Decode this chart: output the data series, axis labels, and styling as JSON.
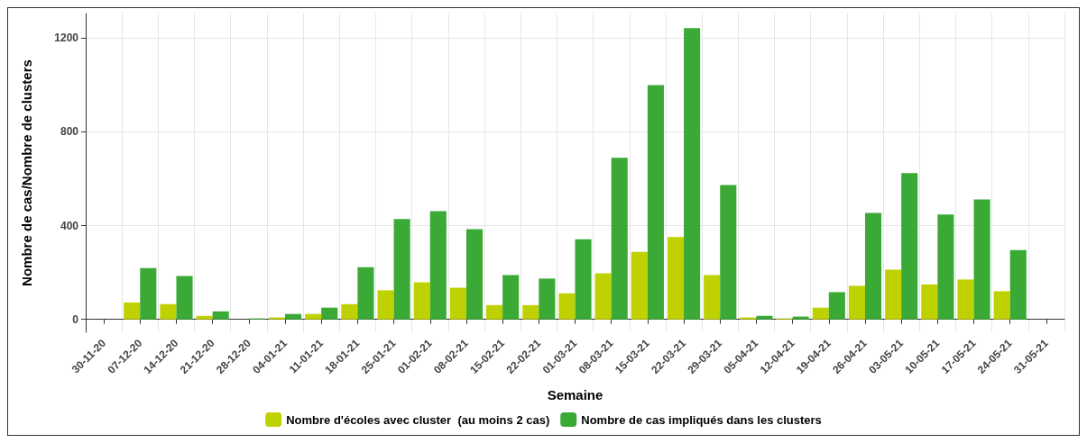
{
  "chart_data": {
    "type": "bar",
    "xlabel": "Semaine",
    "ylabel": "Nombre de cas/Nombre de clusters",
    "categories": [
      "30-11-20",
      "07-12-20",
      "14-12-20",
      "21-12-20",
      "28-12-20",
      "04-01-21",
      "11-01-21",
      "18-01-21",
      "25-01-21",
      "01-02-21",
      "08-02-21",
      "15-02-21",
      "22-02-21",
      "01-03-21",
      "08-03-21",
      "15-03-21",
      "22-03-21",
      "29-03-21",
      "05-04-21",
      "12-04-21",
      "19-04-21",
      "26-04-21",
      "03-05-21",
      "10-05-21",
      "17-05-21",
      "24-05-21",
      "31-05-21"
    ],
    "series": [
      {
        "name": "Nombre d'écoles avec cluster  (au moins 2 cas)",
        "color": "#bfd100",
        "values": [
          null,
          72,
          65,
          15,
          null,
          8,
          23,
          65,
          124,
          158,
          135,
          61,
          61,
          111,
          197,
          288,
          351,
          189,
          8,
          4,
          50,
          143,
          212,
          149,
          170,
          120,
          null
        ]
      },
      {
        "name": "Nombre de cas impliqués dans les clusters",
        "color": "#3aa935",
        "values": [
          null,
          219,
          185,
          34,
          4,
          23,
          50,
          223,
          428,
          462,
          385,
          189,
          174,
          342,
          689,
          1000,
          1243,
          573,
          15,
          12,
          116,
          454,
          624,
          447,
          512,
          296,
          null
        ]
      }
    ],
    "ylim": [
      -55,
      1305
    ],
    "yticks": [
      0,
      400,
      800,
      1200
    ],
    "grid": true,
    "legend": "bottom"
  }
}
